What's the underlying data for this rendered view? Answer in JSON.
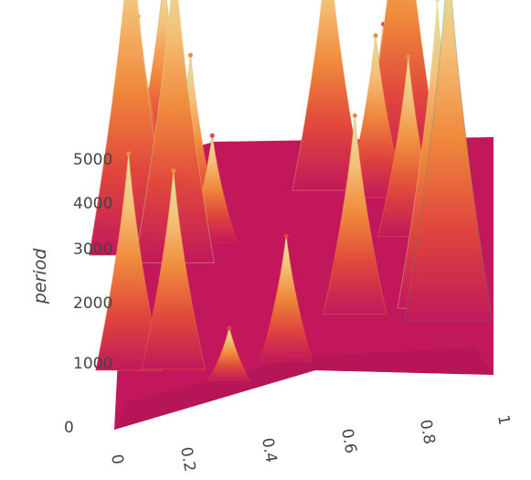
{
  "chart_data": {
    "type": "surface",
    "title": "",
    "xlabel": "",
    "ylabel": "period",
    "x_ticks": [
      "0",
      "0.2",
      "0.4",
      "0.6",
      "0.8",
      "1"
    ],
    "y_ticks": [
      "0",
      "1000",
      "2000",
      "3000",
      "4000",
      "5000"
    ],
    "xlim": [
      0,
      1
    ],
    "ylim": [
      0,
      5500
    ],
    "colorscale": [
      "#c2185b",
      "#e0463c",
      "#f08a3c",
      "#f7d08a",
      "#dce8a8",
      "#8cc6a6",
      "#3f8fa0",
      "#2d5a8a"
    ],
    "peaks": [
      {
        "x": 0.03,
        "period": 5200,
        "value": 0.45
      },
      {
        "x": 0.1,
        "period": 5250,
        "value": 0.55
      },
      {
        "x": 0.02,
        "period": 3600,
        "value": 0.92
      },
      {
        "x": 0.14,
        "period": 3350,
        "value": 0.85
      },
      {
        "x": 0.18,
        "period": 3900,
        "value": 0.5
      },
      {
        "x": 0.24,
        "period": 3700,
        "value": 0.3
      },
      {
        "x": 0.03,
        "period": 1200,
        "value": 0.6
      },
      {
        "x": 0.15,
        "period": 1100,
        "value": 0.55
      },
      {
        "x": 0.3,
        "period": 700,
        "value": 0.15
      },
      {
        "x": 0.45,
        "period": 950,
        "value": 0.35
      },
      {
        "x": 0.55,
        "period": 4600,
        "value": 0.7
      },
      {
        "x": 0.68,
        "period": 4350,
        "value": 0.45
      },
      {
        "x": 0.7,
        "period": 5000,
        "value": 0.4
      },
      {
        "x": 0.75,
        "period": 4700,
        "value": 0.9
      },
      {
        "x": 0.77,
        "period": 3400,
        "value": 0.5
      },
      {
        "x": 0.63,
        "period": 1800,
        "value": 0.55
      },
      {
        "x": 0.85,
        "period": 1700,
        "value": 0.85
      },
      {
        "x": 0.88,
        "period": 1400,
        "value": 1.0
      }
    ]
  }
}
